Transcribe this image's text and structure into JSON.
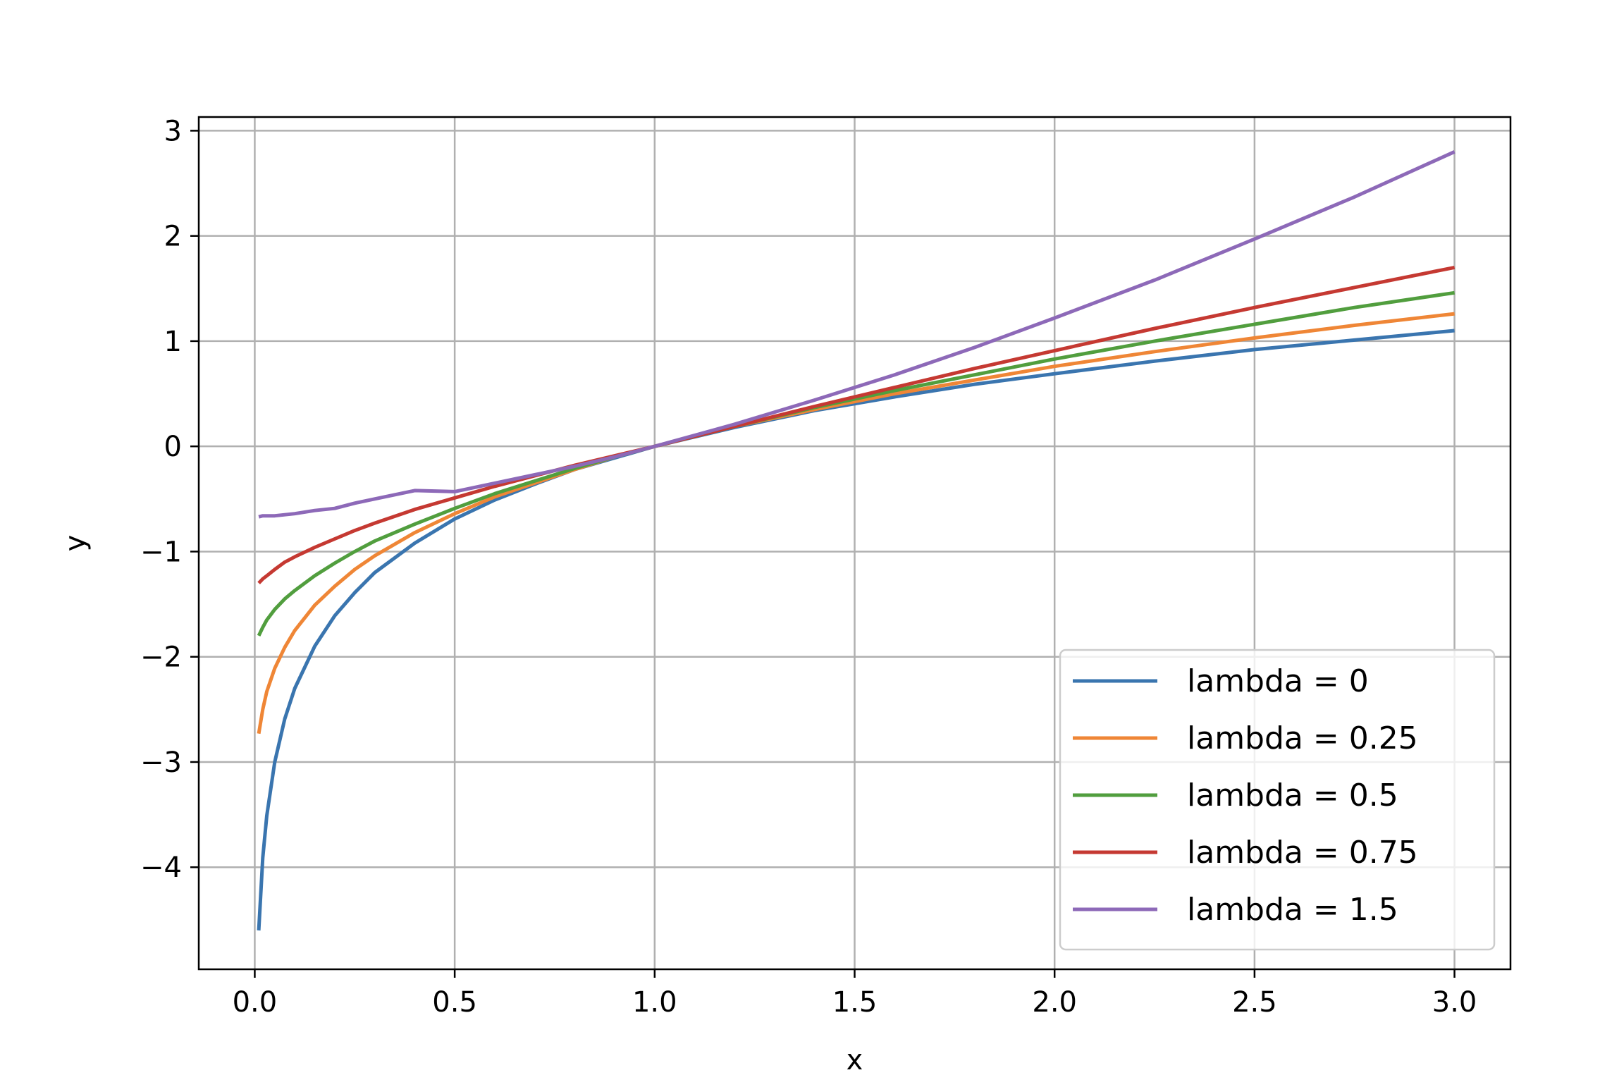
{
  "chart_data": {
    "type": "line",
    "title": "",
    "xlabel": "x",
    "ylabel": "y",
    "xlim": [
      -0.14,
      3.14
    ],
    "ylim": [
      -4.97,
      3.13
    ],
    "x_ticks": [
      0.0,
      0.5,
      1.0,
      1.5,
      2.0,
      2.5,
      3.0
    ],
    "x_tick_labels": [
      "0.0",
      "0.5",
      "1.0",
      "1.5",
      "2.0",
      "2.5",
      "3.0"
    ],
    "y_ticks": [
      -4,
      -3,
      -2,
      -1,
      0,
      1,
      2,
      3
    ],
    "y_tick_labels": [
      "−4",
      "−3",
      "−2",
      "−1",
      "0",
      "1",
      "2",
      "3"
    ],
    "grid": true,
    "legend_position": "lower-right",
    "x": [
      0.01,
      0.02,
      0.03,
      0.05,
      0.075,
      0.1,
      0.15,
      0.2,
      0.25,
      0.3,
      0.4,
      0.5,
      0.6,
      0.7,
      0.8,
      0.9,
      1.0,
      1.2,
      1.4,
      1.6,
      1.8,
      2.0,
      2.25,
      2.5,
      2.75,
      3.0
    ],
    "series": [
      {
        "name": "lambda = 0",
        "color": "#3a75af",
        "values": [
          -4.6,
          -3.91,
          -3.51,
          -3.0,
          -2.59,
          -2.3,
          -1.9,
          -1.61,
          -1.39,
          -1.2,
          -0.92,
          -0.69,
          -0.51,
          -0.36,
          -0.22,
          -0.11,
          0.0,
          0.18,
          0.34,
          0.47,
          0.59,
          0.69,
          0.81,
          0.92,
          1.01,
          1.1
        ]
      },
      {
        "name": "lambda = 0.25",
        "color": "#ef8636",
        "values": [
          -2.73,
          -2.5,
          -2.33,
          -2.11,
          -1.91,
          -1.75,
          -1.51,
          -1.33,
          -1.17,
          -1.04,
          -0.82,
          -0.64,
          -0.48,
          -0.35,
          -0.22,
          -0.1,
          0.0,
          0.19,
          0.35,
          0.5,
          0.63,
          0.76,
          0.9,
          1.03,
          1.15,
          1.26
        ]
      },
      {
        "name": "lambda = 0.5",
        "color": "#519e3e",
        "values": [
          -1.8,
          -1.72,
          -1.65,
          -1.55,
          -1.45,
          -1.37,
          -1.23,
          -1.11,
          -1.0,
          -0.9,
          -0.74,
          -0.59,
          -0.45,
          -0.33,
          -0.21,
          -0.1,
          0.0,
          0.19,
          0.37,
          0.53,
          0.68,
          0.83,
          1.0,
          1.16,
          1.32,
          1.46
        ]
      },
      {
        "name": "lambda = 0.75",
        "color": "#c53932",
        "values": [
          -1.3,
          -1.26,
          -1.23,
          -1.17,
          -1.1,
          -1.05,
          -0.96,
          -0.88,
          -0.8,
          -0.73,
          -0.6,
          -0.49,
          -0.38,
          -0.28,
          -0.18,
          -0.09,
          0.0,
          0.19,
          0.38,
          0.56,
          0.74,
          0.91,
          1.12,
          1.32,
          1.51,
          1.7
        ]
      },
      {
        "name": "lambda = 1.5",
        "color": "#8d69b8",
        "values": [
          -0.67,
          -0.66,
          -0.66,
          -0.66,
          -0.65,
          -0.64,
          -0.61,
          -0.59,
          -0.54,
          -0.5,
          -0.42,
          -0.43,
          -0.35,
          -0.27,
          -0.19,
          -0.1,
          0.0,
          0.21,
          0.44,
          0.68,
          0.94,
          1.22,
          1.58,
          1.97,
          2.37,
          2.8
        ]
      }
    ]
  }
}
